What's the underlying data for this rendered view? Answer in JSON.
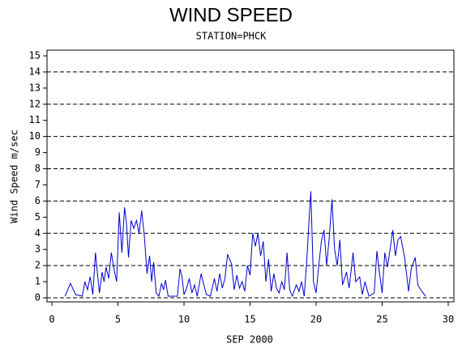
{
  "chart_data": {
    "type": "line",
    "title": "WIND SPEED",
    "subtitle": "STATION=PHCK",
    "y_label": "Wind Speed m/sec",
    "x_label": "SEP 2000",
    "xlim": [
      0,
      30
    ],
    "xticks": [
      0,
      5,
      10,
      15,
      20,
      25,
      30
    ],
    "ylim": [
      0,
      15
    ],
    "yticks": [
      0,
      1,
      2,
      3,
      4,
      5,
      6,
      7,
      8,
      9,
      10,
      11,
      12,
      13,
      14,
      15
    ],
    "ygrid": [
      0,
      2,
      4,
      6,
      8,
      10,
      12,
      14
    ],
    "series": [
      {
        "color": "#0000cc",
        "x": [
          1.0,
          1.4,
          1.8,
          2.3,
          2.5,
          2.7,
          2.9,
          3.1,
          3.3,
          3.45,
          3.6,
          3.8,
          3.95,
          4.1,
          4.3,
          4.5,
          4.7,
          4.9,
          5.1,
          5.3,
          5.5,
          5.65,
          5.8,
          6.0,
          6.2,
          6.4,
          6.6,
          6.8,
          7.0,
          7.2,
          7.4,
          7.55,
          7.7,
          7.9,
          8.1,
          8.3,
          8.45,
          8.6,
          8.8,
          9.5,
          9.7,
          9.85,
          10.0,
          10.2,
          10.4,
          10.6,
          10.8,
          11.0,
          11.3,
          11.5,
          11.7,
          12.0,
          12.3,
          12.5,
          12.7,
          12.9,
          13.1,
          13.3,
          13.6,
          13.8,
          14.0,
          14.2,
          14.4,
          14.6,
          14.8,
          15.0,
          15.2,
          15.4,
          15.6,
          15.8,
          16.0,
          16.2,
          16.4,
          16.6,
          16.8,
          17.0,
          17.2,
          17.4,
          17.6,
          17.8,
          18.0,
          18.2,
          18.5,
          18.7,
          18.9,
          19.1,
          19.3,
          19.5,
          19.6,
          19.8,
          20.0,
          20.2,
          20.4,
          20.6,
          20.8,
          21.0,
          21.2,
          21.4,
          21.6,
          21.8,
          22.0,
          22.3,
          22.5,
          22.8,
          23.0,
          23.3,
          23.5,
          23.7,
          24.0,
          24.4,
          24.6,
          24.8,
          25.0,
          25.2,
          25.4,
          25.6,
          25.8,
          26.0,
          26.2,
          26.4,
          26.7,
          27.0,
          27.2,
          27.5,
          27.7,
          28.0,
          28.3
        ],
        "values": [
          0.1,
          0.9,
          0.2,
          0.1,
          1.0,
          0.5,
          1.3,
          0.2,
          2.8,
          1.5,
          0.3,
          1.6,
          1.0,
          1.9,
          1.2,
          2.8,
          1.8,
          1.0,
          5.3,
          2.8,
          5.6,
          4.6,
          2.5,
          4.8,
          4.3,
          4.8,
          4.0,
          5.4,
          3.8,
          1.5,
          2.6,
          1.0,
          2.2,
          0.3,
          0.1,
          0.9,
          0.5,
          1.1,
          0.1,
          0.1,
          1.8,
          1.3,
          0.2,
          0.6,
          1.2,
          0.3,
          0.8,
          0.1,
          1.5,
          0.8,
          0.2,
          0.1,
          1.2,
          0.4,
          1.5,
          0.6,
          1.2,
          2.7,
          2.1,
          0.5,
          1.4,
          0.6,
          1.0,
          0.4,
          2.0,
          1.4,
          4.0,
          3.2,
          4.0,
          2.6,
          3.5,
          1.0,
          2.4,
          0.4,
          1.5,
          0.6,
          0.3,
          1.0,
          0.5,
          2.8,
          0.5,
          0.1,
          0.8,
          0.4,
          1.0,
          0.1,
          2.4,
          5.3,
          6.6,
          1.0,
          0.3,
          2.0,
          3.5,
          4.2,
          2.0,
          3.8,
          6.1,
          3.0,
          2.0,
          3.6,
          0.8,
          1.6,
          0.6,
          2.8,
          1.0,
          1.3,
          0.2,
          1.0,
          0.1,
          0.3,
          2.9,
          1.5,
          0.3,
          2.8,
          1.9,
          3.0,
          4.2,
          2.6,
          3.6,
          3.8,
          2.5,
          0.4,
          1.8,
          2.5,
          0.8,
          0.4,
          0.1
        ]
      }
    ]
  }
}
